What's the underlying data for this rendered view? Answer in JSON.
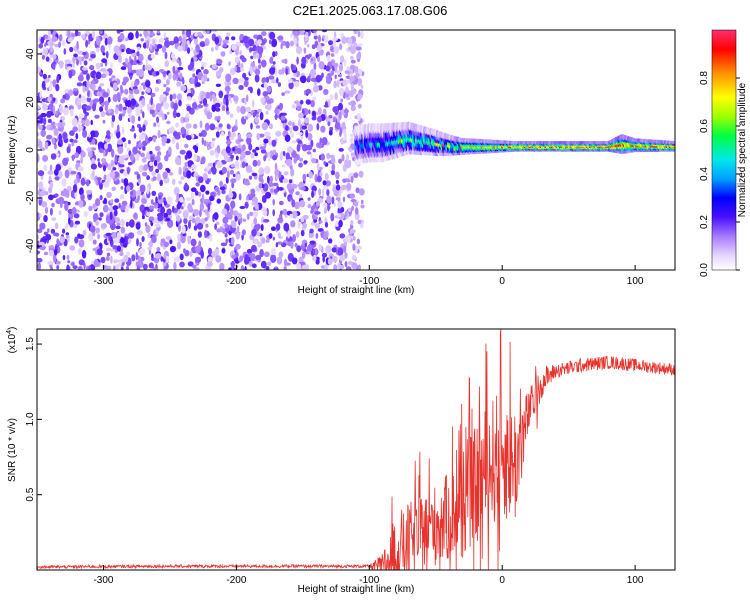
{
  "title": "C2E1.2025.063.17.08.G06",
  "colorbar": {
    "label": "Normalized spectral amplitude",
    "ticks": [
      "0.0",
      "0.2",
      "0.4",
      "0.6",
      "0.8"
    ],
    "range": [
      0,
      1
    ]
  },
  "chart_data": [
    {
      "type": "heatmap",
      "xlabel": "Height of straight line (km)",
      "ylabel": "Frequency (Hz)",
      "xlim": [
        -350,
        130
      ],
      "ylim": [
        -50,
        50
      ],
      "xticks": [
        "-300",
        "-200",
        "-100",
        "0",
        "100"
      ],
      "yticks": [
        "-40",
        "-20",
        "0",
        "20",
        "40"
      ],
      "signal_band": {
        "x_start": -110,
        "x_end": 130,
        "center_frequency": [
          [
            -110,
            2
          ],
          [
            -100,
            3
          ],
          [
            -90,
            3
          ],
          [
            -80,
            4
          ],
          [
            -70,
            5
          ],
          [
            -60,
            4
          ],
          [
            -50,
            3
          ],
          [
            -40,
            2
          ],
          [
            -30,
            1.5
          ],
          [
            -20,
            1.5
          ],
          [
            -10,
            1.5
          ],
          [
            0,
            1.5
          ],
          [
            20,
            1.5
          ],
          [
            40,
            1.5
          ],
          [
            60,
            1.5
          ],
          [
            80,
            1.5
          ],
          [
            90,
            2.5
          ],
          [
            100,
            2
          ],
          [
            130,
            1.5
          ]
        ],
        "half_width_hz": [
          [
            -110,
            6
          ],
          [
            -90,
            6
          ],
          [
            -70,
            5
          ],
          [
            -50,
            4
          ],
          [
            -30,
            2.5
          ],
          [
            -10,
            2
          ],
          [
            10,
            1.5
          ],
          [
            80,
            1.5
          ],
          [
            90,
            3
          ],
          [
            100,
            2
          ],
          [
            130,
            1.5
          ]
        ],
        "peak_amplitude": [
          [
            -110,
            0.3
          ],
          [
            -90,
            0.4
          ],
          [
            -70,
            0.5
          ],
          [
            -50,
            0.55
          ],
          [
            -30,
            0.7
          ],
          [
            -10,
            0.8
          ],
          [
            10,
            0.9
          ],
          [
            40,
            0.95
          ],
          [
            80,
            0.95
          ],
          [
            100,
            0.9
          ],
          [
            130,
            0.9
          ]
        ]
      },
      "noise_region": {
        "x_start": -350,
        "x_end": -105,
        "amplitude_range": [
          0.05,
          0.22
        ]
      }
    },
    {
      "type": "line",
      "xlabel": "Height of straight line (km)",
      "ylabel": "SNR (10 * v/v)",
      "y_scale_label": "(x10",
      "y_scale_exponent": "4",
      "xlim": [
        -350,
        130
      ],
      "ylim": [
        0,
        1.6
      ],
      "xticks": [
        "-300",
        "-200",
        "-100",
        "0",
        "100"
      ],
      "yticks": [
        "0.5",
        "1.0",
        "1.5"
      ],
      "line_color": "#e8322c",
      "series_envelope": [
        [
          -350,
          0.02
        ],
        [
          -260,
          0.025
        ],
        [
          -150,
          0.025
        ],
        [
          -100,
          0.025
        ],
        [
          -90,
          0.03
        ],
        [
          -80,
          0.12
        ],
        [
          -70,
          0.2
        ],
        [
          -60,
          0.25
        ],
        [
          -50,
          0.3
        ],
        [
          -40,
          0.35
        ],
        [
          -30,
          0.45
        ],
        [
          -20,
          0.55
        ],
        [
          -10,
          0.7
        ],
        [
          0,
          0.78
        ],
        [
          10,
          0.7
        ],
        [
          20,
          1.05
        ],
        [
          30,
          1.25
        ],
        [
          40,
          1.32
        ],
        [
          60,
          1.36
        ],
        [
          80,
          1.38
        ],
        [
          100,
          1.36
        ],
        [
          130,
          1.33
        ]
      ],
      "spike_amplitude": [
        [
          -350,
          0.01
        ],
        [
          -100,
          0.01
        ],
        [
          -90,
          0.08
        ],
        [
          -80,
          0.25
        ],
        [
          -60,
          0.25
        ],
        [
          -40,
          0.3
        ],
        [
          -20,
          0.4
        ],
        [
          0,
          0.45
        ],
        [
          10,
          0.4
        ],
        [
          20,
          0.15
        ],
        [
          40,
          0.05
        ],
        [
          130,
          0.04
        ]
      ]
    }
  ]
}
